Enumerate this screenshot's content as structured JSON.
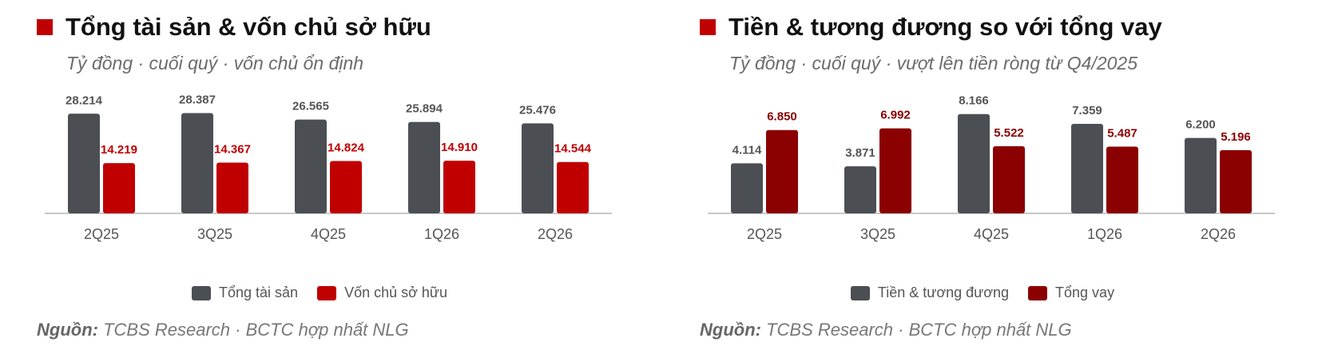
{
  "panels": [
    {
      "title": "Tổng tài sản & vốn chủ sở hữu",
      "subtitle": "Tỷ đồng · cuối quý · vốn chủ ổn định",
      "source_label": "Nguồn:",
      "source_text": "TCBS Research · BCTC hợp nhất NLG",
      "chart_data": {
        "type": "bar",
        "categories": [
          "2Q25",
          "3Q25",
          "4Q25",
          "1Q26",
          "2Q26"
        ],
        "series": [
          {
            "name": "Tổng tài sản",
            "color": "#4b4f54",
            "label_color": "#555555",
            "values": [
              28214,
              28387,
              26565,
              25894,
              25476
            ],
            "labels": [
              "28.214",
              "28.387",
              "26.565",
              "25.894",
              "25.476"
            ]
          },
          {
            "name": "Vốn chủ sở hữu",
            "color": "#c00000",
            "label_color": "#c00000",
            "values": [
              14219,
              14367,
              14824,
              14910,
              14544
            ],
            "labels": [
              "14.219",
              "14.367",
              "14.824",
              "14.910",
              "14.544"
            ]
          }
        ],
        "ylim": [
          0,
          31000
        ],
        "legend": "bottom-center",
        "grid": false
      }
    },
    {
      "title": "Tiền & tương đương so với tổng vay",
      "subtitle": "Tỷ đồng · cuối quý · vượt lên tiền ròng từ Q4/2025",
      "source_label": "Nguồn:",
      "source_text": "TCBS Research · BCTC hợp nhất NLG",
      "chart_data": {
        "type": "bar",
        "categories": [
          "2Q25",
          "3Q25",
          "4Q25",
          "1Q26",
          "2Q26"
        ],
        "series": [
          {
            "name": "Tiền & tương đương",
            "color": "#4b4f54",
            "label_color": "#555555",
            "values": [
              4114,
              3871,
              8166,
              7359,
              6200
            ],
            "labels": [
              "4.114",
              "3.871",
              "8.166",
              "7.359",
              "6.200"
            ]
          },
          {
            "name": "Tổng vay",
            "color": "#8b0000",
            "label_color": "#8b0000",
            "values": [
              6850,
              6992,
              5522,
              5487,
              5196
            ],
            "labels": [
              "6.850",
              "6.992",
              "5.522",
              "5.487",
              "5.196"
            ]
          }
        ],
        "ylim": [
          0,
          9000
        ],
        "legend": "bottom-center",
        "grid": false
      }
    }
  ]
}
